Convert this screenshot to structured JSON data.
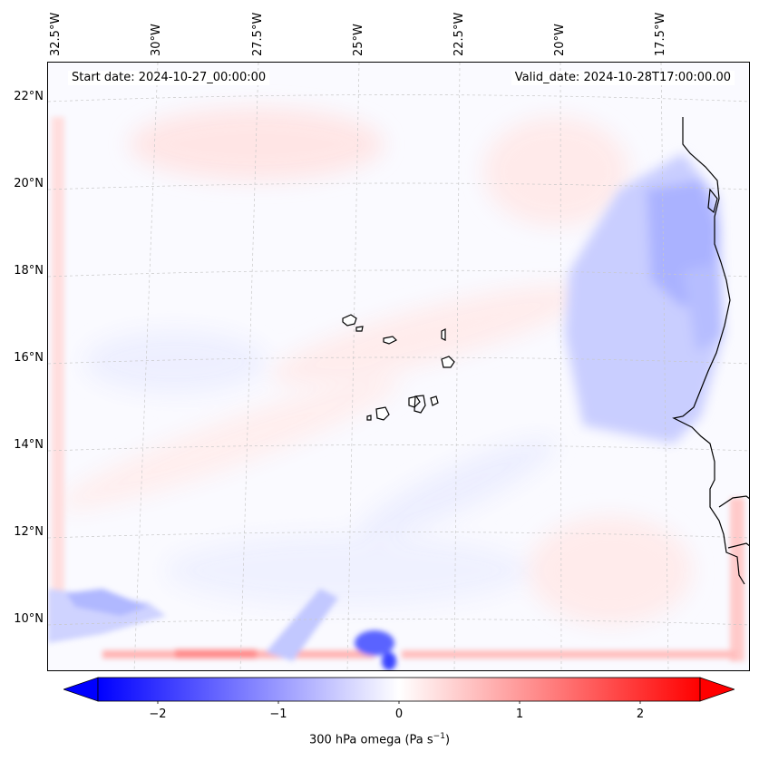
{
  "map": {
    "start_date": "Start date: 2024-10-27_00:00:00",
    "valid_date": "Valid_date: 2024-10-28T17:00:00.00",
    "lat_labels": [
      "22°N",
      "20°N",
      "18°N",
      "16°N",
      "14°N",
      "12°N",
      "10°N"
    ],
    "lon_labels": [
      "32.5°W",
      "30°W",
      "27.5°W",
      "25°W",
      "22.5°W",
      "20°W",
      "17.5°W"
    ],
    "field": "300 hPa omega",
    "coast_color": "#000000",
    "grid_color": "#c8c8c8",
    "colormap": "bwr"
  },
  "colorbar": {
    "title_main": "300 hPa omega (Pa s",
    "title_exp": "−1",
    "title_close": ")",
    "tick_labels": [
      "−2",
      "−1",
      "0",
      "1",
      "2"
    ],
    "min": -2.6,
    "max": 2.6,
    "extend": "both",
    "color_negative": "#0000ff",
    "color_zero": "#ffffff",
    "color_positive": "#ff0000"
  }
}
